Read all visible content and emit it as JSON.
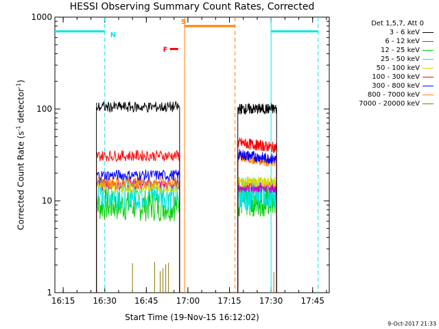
{
  "chart_data": {
    "type": "line",
    "title": "HESSI Observing Summary Count Rates, Corrected",
    "xlabel": "Start Time (19-Nov-15 16:12:02)",
    "ylabel_main": "Corrected Count Rate (s",
    "ylabel_sup1": "-1",
    "ylabel_mid": " detector",
    "ylabel_sup2": "-1",
    "ylabel_end": ")",
    "y_scale": "log",
    "ylim": [
      1,
      1000
    ],
    "xlim_minutes": [
      16.2,
      17.85
    ],
    "x_ticks": [
      "16:15",
      "16:30",
      "16:45",
      "17:00",
      "17:15",
      "17:30",
      "17:45"
    ],
    "y_ticks": [
      "1",
      "10",
      "100",
      "1000"
    ],
    "legend_header": "Det 1,5,7, Att 0",
    "series": [
      {
        "name": "3 - 6 keV",
        "color": "#000000",
        "level_seg1": 105,
        "level_seg2": 100
      },
      {
        "name": "6 - 12 keV",
        "color": "#cc00cc",
        "level_seg1": 15,
        "level_seg2": 14
      },
      {
        "name": "12 - 25 keV",
        "color": "#00cc00",
        "level_seg1": 9,
        "level_seg2": 10
      },
      {
        "name": "25 - 50 keV",
        "color": "#00e5e5",
        "level_seg1": 12,
        "level_seg2": 12
      },
      {
        "name": "50 - 100 keV",
        "color": "#d8d800",
        "level_seg1": 14,
        "level_seg2": 16
      },
      {
        "name": "100 - 300 keV",
        "color": "#ff0000",
        "level_seg1": 31,
        "level_seg2": 43
      },
      {
        "name": "300 - 800 keV",
        "color": "#0000ff",
        "level_seg1": 19,
        "level_seg2": 32
      },
      {
        "name": "800 - 7000 keV",
        "color": "#ff7f00",
        "level_seg1": 16,
        "level_seg2": 30
      },
      {
        "name": "7000 - 20000 keV",
        "color": "#8b7500",
        "level_seg1": 1,
        "level_seg2": 1
      }
    ],
    "flags": [
      {
        "letter": "N",
        "color": "#00e5e5"
      },
      {
        "letter": "S",
        "color": "#ff7f00"
      },
      {
        "letter": "F",
        "color": "#ff0000"
      }
    ]
  },
  "timestamp": "9-Oct-2017 21:33"
}
